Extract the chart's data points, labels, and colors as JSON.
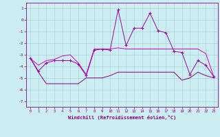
{
  "xlabel": "Windchill (Refroidissement éolien,°C)",
  "background_color": "#cceef2",
  "grid_color": "#aad4dc",
  "line_color_main": "#9900aa",
  "line_color_upper": "#cc00cc",
  "line_color_lower": "#880088",
  "ylim": [
    -7.5,
    1.5
  ],
  "xlim": [
    -0.5,
    23.5
  ],
  "yticks": [
    1,
    0,
    -1,
    -2,
    -3,
    -4,
    -5,
    -6,
    -7
  ],
  "xticks": [
    0,
    1,
    2,
    3,
    4,
    5,
    6,
    7,
    8,
    9,
    10,
    11,
    12,
    13,
    14,
    15,
    16,
    17,
    18,
    19,
    20,
    21,
    22,
    23
  ],
  "hours": [
    0,
    1,
    2,
    3,
    4,
    5,
    6,
    7,
    8,
    9,
    10,
    11,
    12,
    13,
    14,
    15,
    16,
    17,
    18,
    19,
    20,
    21,
    22,
    23
  ],
  "series_main": [
    -3.3,
    -4.4,
    -3.7,
    -3.5,
    -3.5,
    -3.5,
    -3.8,
    -4.8,
    -2.6,
    -2.5,
    -2.6,
    0.9,
    -2.2,
    -0.7,
    -0.7,
    0.6,
    -0.9,
    -1.1,
    -2.7,
    -2.8,
    -4.7,
    -3.5,
    -3.9,
    -4.9
  ],
  "series_upper": [
    -3.3,
    -3.9,
    -3.5,
    -3.4,
    -3.1,
    -3.0,
    -3.7,
    -4.7,
    -2.5,
    -2.5,
    -2.5,
    -2.4,
    -2.5,
    -2.5,
    -2.5,
    -2.5,
    -2.5,
    -2.5,
    -2.5,
    -2.5,
    -2.5,
    -2.5,
    -2.9,
    -4.9
  ],
  "series_lower": [
    -3.3,
    -4.5,
    -5.5,
    -5.5,
    -5.5,
    -5.5,
    -5.5,
    -5.0,
    -5.0,
    -5.0,
    -4.8,
    -4.5,
    -4.5,
    -4.5,
    -4.5,
    -4.5,
    -4.5,
    -4.5,
    -4.5,
    -5.2,
    -5.0,
    -4.5,
    -4.8,
    -5.0
  ]
}
